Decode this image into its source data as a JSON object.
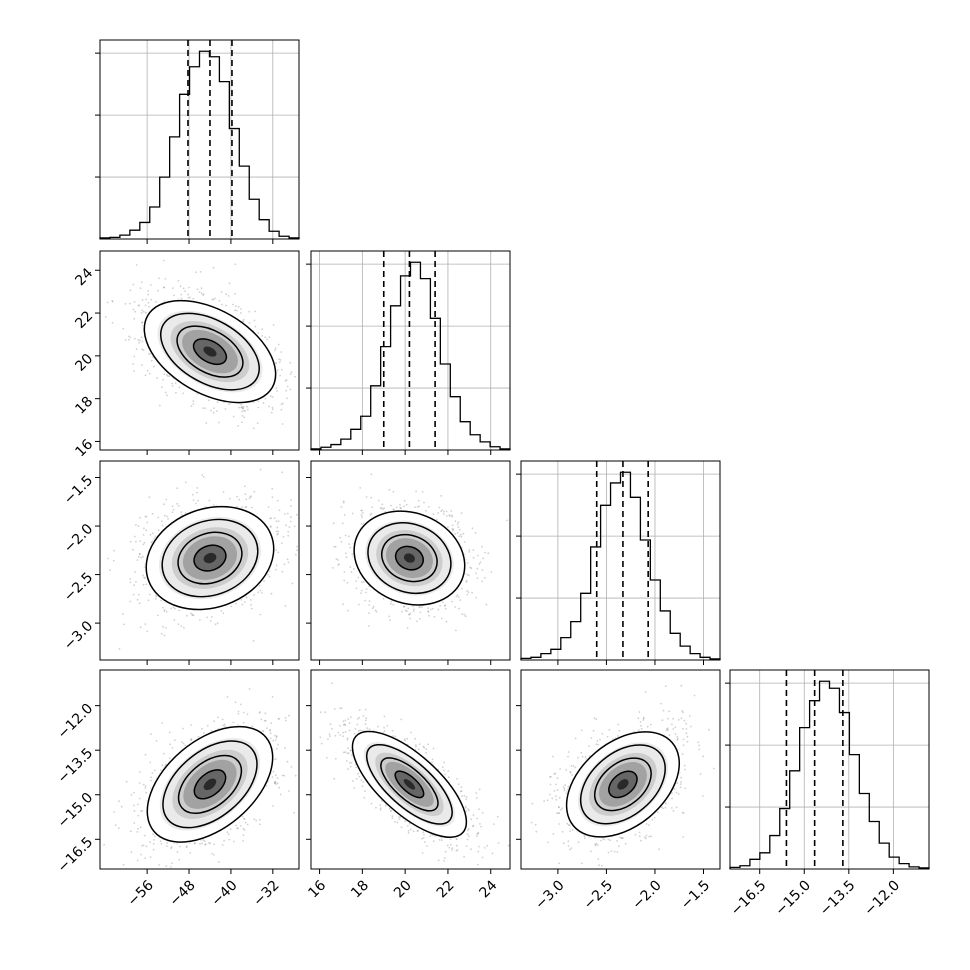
{
  "chart_data": {
    "type": "corner",
    "title": "",
    "grid": true,
    "colors": {
      "axes": "#000000",
      "grid": "#b0b0b0",
      "points": "#7a7a7a",
      "contour": "#000000",
      "background": "#ffffff"
    },
    "parameters": [
      {
        "index": 0,
        "range": [
          -65.0,
          -27.0
        ],
        "ticks": [
          -56,
          -48,
          -40,
          -32
        ],
        "tick_labels": [
          "−56",
          "−48",
          "−40",
          "−32"
        ],
        "label": ""
      },
      {
        "index": 1,
        "range": [
          15.6,
          24.9
        ],
        "ticks": [
          16,
          18,
          20,
          22,
          24
        ],
        "tick_labels": [
          "16",
          "18",
          "20",
          "22",
          "24"
        ],
        "label": ""
      },
      {
        "index": 2,
        "range": [
          -3.38,
          -1.33
        ],
        "ticks": [
          -3.0,
          -2.5,
          -2.0,
          -1.5
        ],
        "tick_labels": [
          "−3.0",
          "−2.5",
          "−2.0",
          "−1.5"
        ],
        "label": ""
      },
      {
        "index": 3,
        "range": [
          -17.5,
          -10.8
        ],
        "ticks": [
          -16.5,
          -15.0,
          -13.5,
          -12.0
        ],
        "tick_labels": [
          "−16.5",
          "−15.0",
          "−13.5",
          "−12.0"
        ],
        "label": ""
      }
    ],
    "histograms": [
      {
        "param": 0,
        "bins": [
          -65.0,
          -63.1,
          -61.2,
          -59.3,
          -57.4,
          -55.5,
          -53.6,
          -51.7,
          -49.8,
          -47.9,
          -46.0,
          -44.1,
          -42.2,
          -40.3,
          -38.4,
          -36.5,
          -34.6,
          -32.7,
          -30.8,
          -28.9,
          -27.0
        ],
        "counts": [
          2,
          3,
          7,
          16,
          30,
          58,
          112,
          185,
          262,
          312,
          340,
          330,
          285,
          200,
          132,
          72,
          35,
          14,
          5,
          2
        ],
        "quantiles": [
          -48.2,
          -44.0,
          -39.8
        ]
      },
      {
        "param": 1,
        "bins": [
          15.6,
          16.065,
          16.53,
          16.995,
          17.46,
          17.925,
          18.39,
          18.855,
          19.32,
          19.785,
          20.25,
          20.715,
          21.18,
          21.645,
          22.11,
          22.575,
          23.04,
          23.505,
          23.97,
          24.435,
          24.9
        ],
        "counts": [
          2,
          5,
          10,
          20,
          38,
          62,
          118,
          190,
          265,
          320,
          345,
          315,
          242,
          158,
          98,
          52,
          28,
          15,
          6,
          2
        ],
        "quantiles": [
          19.0,
          20.2,
          21.4
        ]
      },
      {
        "param": 2,
        "bins": [
          -3.38,
          -3.2775,
          -3.175,
          -3.0725,
          -2.97,
          -2.8675,
          -2.765,
          -2.6625,
          -2.56,
          -2.4575,
          -2.355,
          -2.2525,
          -2.15,
          -2.0475,
          -1.945,
          -1.8425,
          -1.74,
          -1.6375,
          -1.535,
          -1.4325,
          -1.33
        ],
        "counts": [
          3,
          5,
          12,
          20,
          42,
          72,
          125,
          212,
          290,
          332,
          352,
          305,
          225,
          150,
          92,
          50,
          26,
          12,
          5,
          2
        ],
        "quantiles": [
          -2.6,
          -2.33,
          -2.07
        ]
      },
      {
        "param": 3,
        "bins": [
          -17.5,
          -17.165,
          -16.83,
          -16.495,
          -16.16,
          -15.825,
          -15.49,
          -15.155,
          -14.82,
          -14.485,
          -14.15,
          -13.815,
          -13.48,
          -13.145,
          -12.81,
          -12.475,
          -12.14,
          -11.805,
          -11.47,
          -11.135,
          -10.8
        ],
        "counts": [
          3,
          6,
          18,
          30,
          62,
          112,
          182,
          262,
          312,
          348,
          335,
          290,
          212,
          140,
          88,
          48,
          22,
          10,
          4,
          2
        ],
        "quantiles": [
          -15.6,
          -14.65,
          -13.7
        ]
      }
    ],
    "joint": [
      {
        "x_param": 0,
        "y_param": 1,
        "mean": [
          -44.0,
          20.2
        ],
        "std": [
          6.0,
          1.2
        ],
        "corr": -0.45,
        "ellipse_angle_deg": -30
      },
      {
        "x_param": 0,
        "y_param": 2,
        "mean": [
          -44.0,
          -2.33
        ],
        "std": [
          6.0,
          0.27
        ],
        "corr": 0.2,
        "ellipse_angle_deg": 20
      },
      {
        "x_param": 1,
        "y_param": 2,
        "mean": [
          20.2,
          -2.33
        ],
        "std": [
          1.2,
          0.27
        ],
        "corr": -0.3,
        "ellipse_angle_deg": -22
      },
      {
        "x_param": 0,
        "y_param": 3,
        "mean": [
          -44.0,
          -14.65
        ],
        "std": [
          6.0,
          0.95
        ],
        "corr": 0.5,
        "ellipse_angle_deg": 40
      },
      {
        "x_param": 1,
        "y_param": 3,
        "mean": [
          20.2,
          -14.65
        ],
        "std": [
          1.2,
          0.95
        ],
        "corr": -0.8,
        "ellipse_angle_deg": -42
      },
      {
        "x_param": 2,
        "y_param": 3,
        "mean": [
          -2.33,
          -14.65
        ],
        "std": [
          0.27,
          0.95
        ],
        "corr": 0.45,
        "ellipse_angle_deg": 40
      }
    ],
    "contour_levels_sigma": [
      0.5,
      1.0,
      1.5,
      2.0
    ]
  }
}
